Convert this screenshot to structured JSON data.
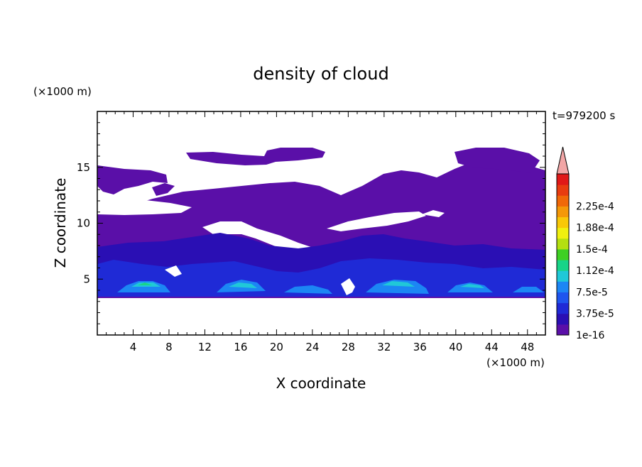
{
  "chart_data": {
    "type": "heatmap",
    "title": "density of cloud",
    "xlabel": "X coordinate",
    "ylabel": "Z coordinate",
    "x_unit": "(×1000 m)",
    "y_unit": "(×1000 m)",
    "time_label": "t=979200 s",
    "xlim": [
      0,
      50
    ],
    "ylim": [
      0,
      20
    ],
    "x_ticks": [
      4,
      8,
      12,
      16,
      20,
      24,
      28,
      32,
      36,
      40,
      44,
      48
    ],
    "y_ticks": [
      5,
      10,
      15
    ],
    "colorbar": {
      "labels": [
        "1e-16",
        "3.75e-5",
        "7.5e-5",
        "1.12e-4",
        "1.5e-4",
        "1.88e-4",
        "2.25e-4"
      ],
      "colors": [
        "#5a0fa8",
        "#2a0fb4",
        "#1f2ad6",
        "#1e55ee",
        "#1c86f4",
        "#20c8d8",
        "#18d488",
        "#3ed024",
        "#b4e010",
        "#f0f010",
        "#f8c808",
        "#f49808",
        "#f06808",
        "#e83c10",
        "#e01818"
      ],
      "extend_color": "#f2a6a6"
    },
    "bands": [
      {
        "level": "background",
        "color": "#5a0fa8"
      },
      {
        "level": "low",
        "color": "#2a0fb4"
      },
      {
        "level": "mid",
        "color": "#1f2ad6"
      },
      {
        "level": "high",
        "color": "#1c86f4"
      },
      {
        "level": "peak",
        "color": "#20c8d8"
      },
      {
        "level": "max",
        "color": "#18d488"
      }
    ]
  }
}
